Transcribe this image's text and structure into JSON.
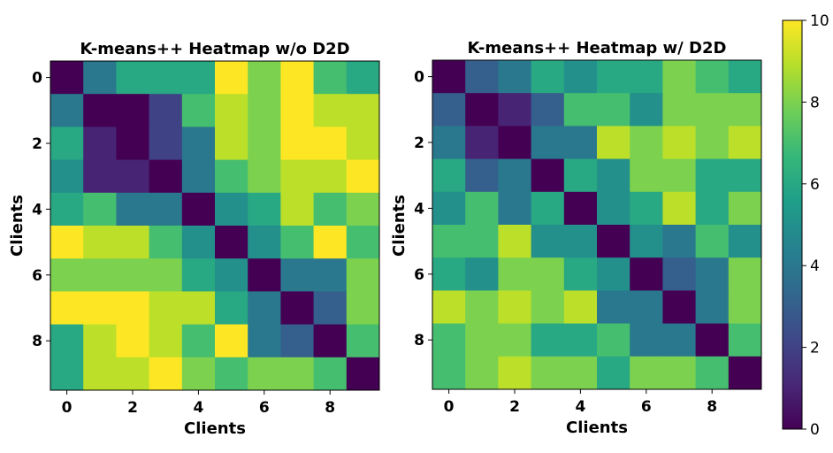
{
  "chart_data": [
    {
      "type": "heatmap",
      "title": "K-means++ Heatmap w/o D2D",
      "xlabel": "Clients",
      "ylabel": "Clients",
      "x_ticks": [
        "0",
        "2",
        "4",
        "6",
        "8"
      ],
      "y_ticks": [
        "0",
        "2",
        "4",
        "6",
        "8"
      ],
      "vmin": 0,
      "vmax": 10,
      "values": [
        [
          0,
          4,
          6,
          6,
          6,
          10,
          8,
          10,
          7,
          6
        ],
        [
          4,
          0,
          0,
          2,
          7,
          9,
          8,
          10,
          9,
          9
        ],
        [
          6,
          1,
          0,
          2,
          4,
          9,
          8,
          10,
          10,
          9
        ],
        [
          5,
          1,
          1,
          0,
          4,
          7,
          8,
          9,
          9,
          10
        ],
        [
          6,
          7,
          4,
          4,
          0,
          5,
          6,
          9,
          7,
          8
        ],
        [
          10,
          9,
          9,
          7,
          5,
          0,
          5,
          7,
          10,
          7
        ],
        [
          8,
          8,
          8,
          8,
          6,
          5,
          0,
          4,
          4,
          8
        ],
        [
          10,
          10,
          10,
          9,
          9,
          6,
          4,
          0,
          3,
          8
        ],
        [
          6,
          9,
          10,
          9,
          7,
          10,
          4,
          3,
          0,
          7
        ],
        [
          6,
          9,
          9,
          10,
          8,
          7,
          8,
          8,
          7,
          0
        ]
      ]
    },
    {
      "type": "heatmap",
      "title": "K-means++ Heatmap w/ D2D",
      "xlabel": "Clients",
      "ylabel": "Clients",
      "x_ticks": [
        "0",
        "2",
        "4",
        "6",
        "8"
      ],
      "y_ticks": [
        "0",
        "2",
        "4",
        "6",
        "8"
      ],
      "vmin": 0,
      "vmax": 10,
      "values": [
        [
          0,
          3,
          4,
          6,
          5,
          6,
          6,
          8,
          7,
          6
        ],
        [
          3,
          0,
          1,
          3,
          7,
          7,
          5,
          8,
          8,
          8
        ],
        [
          4,
          1,
          0,
          4,
          4,
          9,
          8,
          9,
          8,
          9
        ],
        [
          6,
          3,
          4,
          0,
          6,
          5,
          8,
          8,
          6,
          6
        ],
        [
          5,
          7,
          4,
          6,
          0,
          5,
          6,
          9,
          6,
          8
        ],
        [
          7,
          7,
          9,
          5,
          5,
          0,
          5,
          4,
          7,
          5
        ],
        [
          6,
          5,
          8,
          8,
          6,
          5,
          0,
          3,
          4,
          8
        ],
        [
          9,
          8,
          9,
          8,
          9,
          4,
          4,
          0,
          4,
          8
        ],
        [
          7,
          8,
          8,
          6,
          6,
          7,
          4,
          4,
          0,
          7
        ],
        [
          7,
          8,
          9,
          8,
          8,
          6,
          8,
          8,
          7,
          0
        ]
      ]
    }
  ],
  "colorbar": {
    "ticks": [
      "0",
      "2",
      "4",
      "6",
      "8",
      "10"
    ],
    "colormap": "viridis",
    "colors": [
      "#440154",
      "#482878",
      "#3e4989",
      "#31688e",
      "#26828e",
      "#1f9e89",
      "#35b779",
      "#6ece58",
      "#b5de2b",
      "#fde725"
    ]
  }
}
